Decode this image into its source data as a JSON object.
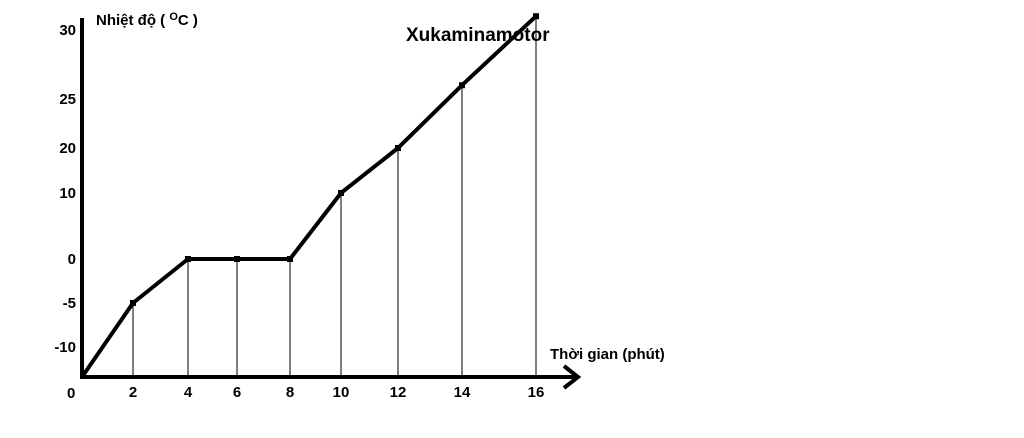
{
  "chart_data": {
    "type": "line",
    "title": "Xukaminamotor",
    "xlabel": "Thời gian (phút)",
    "ylabel": {
      "prefix": "Nhiệt độ ( ",
      "sup": "O",
      "suffix": "C )"
    },
    "origin_label": "0",
    "x_ticks": [
      "2",
      "4",
      "6",
      "8",
      "10",
      "12",
      "14",
      "16"
    ],
    "y_ticks": [
      "30",
      "25",
      "20",
      "10",
      "0",
      "-5",
      "-10"
    ],
    "grid": false,
    "series": [
      {
        "x": [
          0,
          2,
          4,
          6,
          8,
          10,
          12,
          14,
          16
        ],
        "y": [
          -15,
          -5,
          0,
          0,
          0,
          10,
          20,
          26,
          31
        ]
      }
    ]
  },
  "colors": {
    "line": "#000000",
    "axis": "#000000",
    "background": "#ffffff"
  }
}
